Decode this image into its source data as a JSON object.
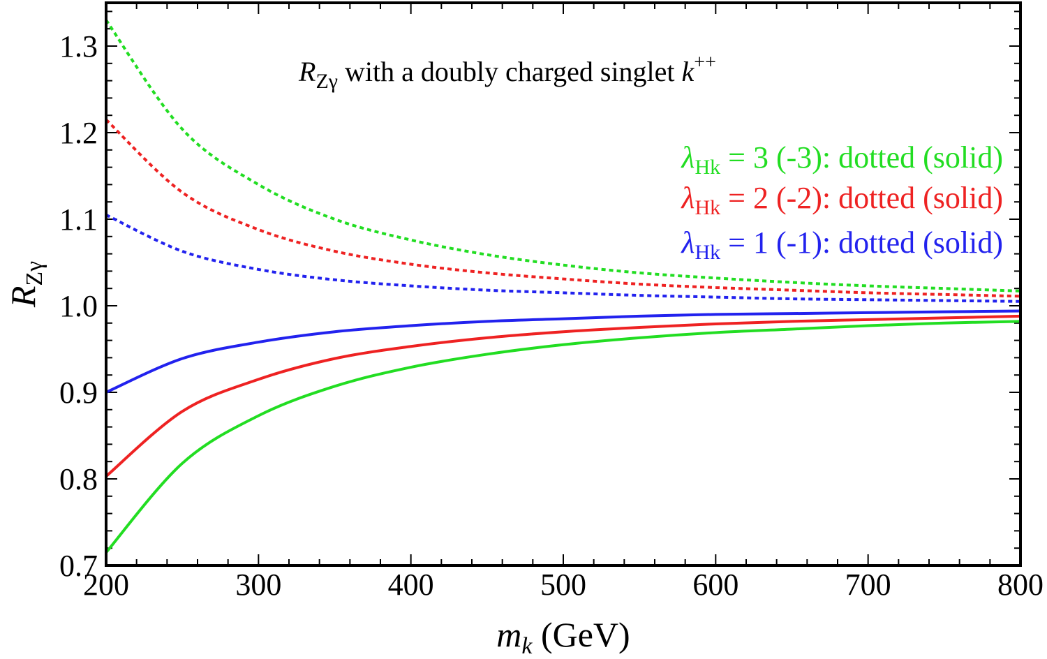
{
  "chart_data": {
    "type": "line",
    "title": {
      "main": "R",
      "main_sub": "Zγ",
      "rest": " with a doubly charged singlet ",
      "tail": "k",
      "tail_sup": "++"
    },
    "xlabel": {
      "main": "m",
      "sub": "k",
      "rest": " (GeV)"
    },
    "ylabel": {
      "main": "R",
      "sub": "Zγ"
    },
    "xlim": [
      200,
      800
    ],
    "ylim": [
      0.7,
      1.35
    ],
    "x_ticks": [
      "200",
      "300",
      "400",
      "500",
      "600",
      "700",
      "800"
    ],
    "y_ticks": [
      "0.7",
      "0.8",
      "0.9",
      "1.0",
      "1.1",
      "1.2",
      "1.3"
    ],
    "legend": [
      {
        "symbol": "λ",
        "sub": "Hk",
        "text": " = 3 (-3): dotted (solid)",
        "color": "#22dd22"
      },
      {
        "symbol": "λ",
        "sub": "Hk",
        "text": " = 2 (-2): dotted (solid)",
        "color": "#ee2222"
      },
      {
        "symbol": "λ",
        "sub": "Hk",
        "text": " = 1 (-1): dotted (solid)",
        "color": "#2222ee"
      }
    ],
    "series": [
      {
        "name": "λHk = 3 (dotted)",
        "style": "dotted",
        "color": "#22dd22",
        "x": [
          200,
          250,
          300,
          350,
          400,
          450,
          500,
          550,
          600,
          650,
          700,
          750,
          800
        ],
        "y": [
          1.33,
          1.204,
          1.14,
          1.1,
          1.076,
          1.059,
          1.047,
          1.038,
          1.032,
          1.027,
          1.023,
          1.02,
          1.017
        ]
      },
      {
        "name": "λHk = 2 (dotted)",
        "style": "dotted",
        "color": "#ee2222",
        "x": [
          200,
          250,
          300,
          350,
          400,
          450,
          500,
          550,
          600,
          650,
          700,
          750,
          800
        ],
        "y": [
          1.215,
          1.131,
          1.088,
          1.063,
          1.048,
          1.038,
          1.031,
          1.025,
          1.021,
          1.018,
          1.015,
          1.013,
          1.011
        ]
      },
      {
        "name": "λHk = 1 (dotted)",
        "style": "dotted",
        "color": "#2222ee",
        "x": [
          200,
          250,
          300,
          350,
          400,
          450,
          500,
          550,
          600,
          650,
          700,
          750,
          800
        ],
        "y": [
          1.105,
          1.063,
          1.042,
          1.03,
          1.023,
          1.018,
          1.015,
          1.012,
          1.01,
          1.008,
          1.007,
          1.006,
          1.005
        ]
      },
      {
        "name": "λHk = -1 (solid)",
        "style": "solid",
        "color": "#2222ee",
        "x": [
          200,
          250,
          300,
          350,
          400,
          450,
          500,
          550,
          600,
          650,
          700,
          750,
          800
        ],
        "y": [
          0.9,
          0.939,
          0.958,
          0.97,
          0.977,
          0.982,
          0.985,
          0.988,
          0.99,
          0.991,
          0.992,
          0.993,
          0.994
        ]
      },
      {
        "name": "λHk = -2 (solid)",
        "style": "solid",
        "color": "#ee2222",
        "x": [
          200,
          250,
          300,
          350,
          400,
          450,
          500,
          550,
          600,
          650,
          700,
          750,
          800
        ],
        "y": [
          0.803,
          0.878,
          0.915,
          0.939,
          0.953,
          0.963,
          0.97,
          0.975,
          0.979,
          0.982,
          0.984,
          0.986,
          0.988
        ]
      },
      {
        "name": "λHk = -3 (solid)",
        "style": "solid",
        "color": "#22dd22",
        "x": [
          200,
          250,
          300,
          350,
          400,
          450,
          500,
          550,
          600,
          650,
          700,
          750,
          800
        ],
        "y": [
          0.715,
          0.818,
          0.873,
          0.907,
          0.929,
          0.944,
          0.955,
          0.963,
          0.969,
          0.973,
          0.977,
          0.98,
          0.982
        ]
      }
    ]
  }
}
